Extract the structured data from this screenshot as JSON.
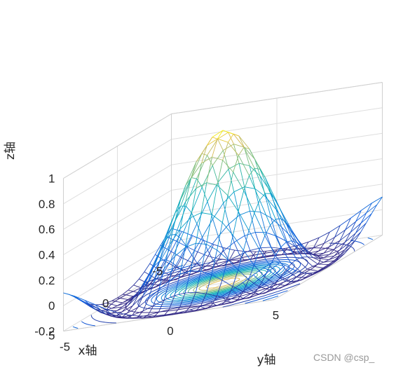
{
  "chart_data": {
    "type": "surface-mesh-with-contour",
    "function": "sin(r)/r, r = sqrt(x^2 + y^2)",
    "x": {
      "label": "x轴",
      "range": [
        -5,
        5
      ],
      "ticks": [
        "-5",
        "0",
        "5"
      ]
    },
    "y": {
      "label": "y轴",
      "range": [
        -5,
        5
      ],
      "ticks": [
        "-5",
        "0",
        "5"
      ]
    },
    "z": {
      "label": "z轴",
      "range": [
        -0.2,
        1
      ],
      "ticks": [
        "-0.2",
        "0",
        "0.2",
        "0.4",
        "0.6",
        "0.8",
        "1"
      ]
    },
    "mesh_step": 0.5,
    "grid": true,
    "colormap": "parula",
    "contour_on_base": true
  },
  "watermark": "CSDN @csp_"
}
